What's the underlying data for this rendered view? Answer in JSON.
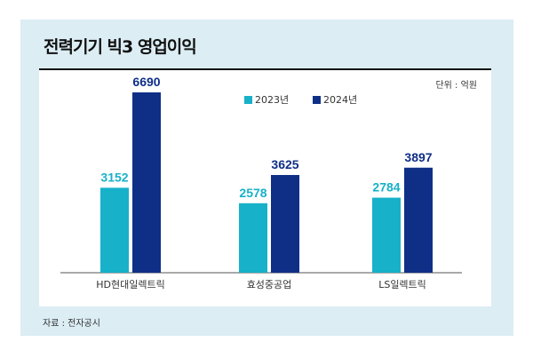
{
  "chart_data": {
    "type": "bar",
    "title": "전력기기 빅3 영업이익",
    "unit": "단위 : 억원",
    "source": "자료 : 전자공시",
    "categories": [
      "HD현대일렉트릭",
      "효성중공업",
      "LS일렉트릭"
    ],
    "series": [
      {
        "name": "2023년",
        "color": "#17b1c9",
        "values": [
          3152,
          2578,
          2784
        ]
      },
      {
        "name": "2024년",
        "color": "#0f2f87",
        "values": [
          6690,
          3625,
          3897
        ]
      }
    ],
    "legend": "top-center",
    "grid": false
  }
}
